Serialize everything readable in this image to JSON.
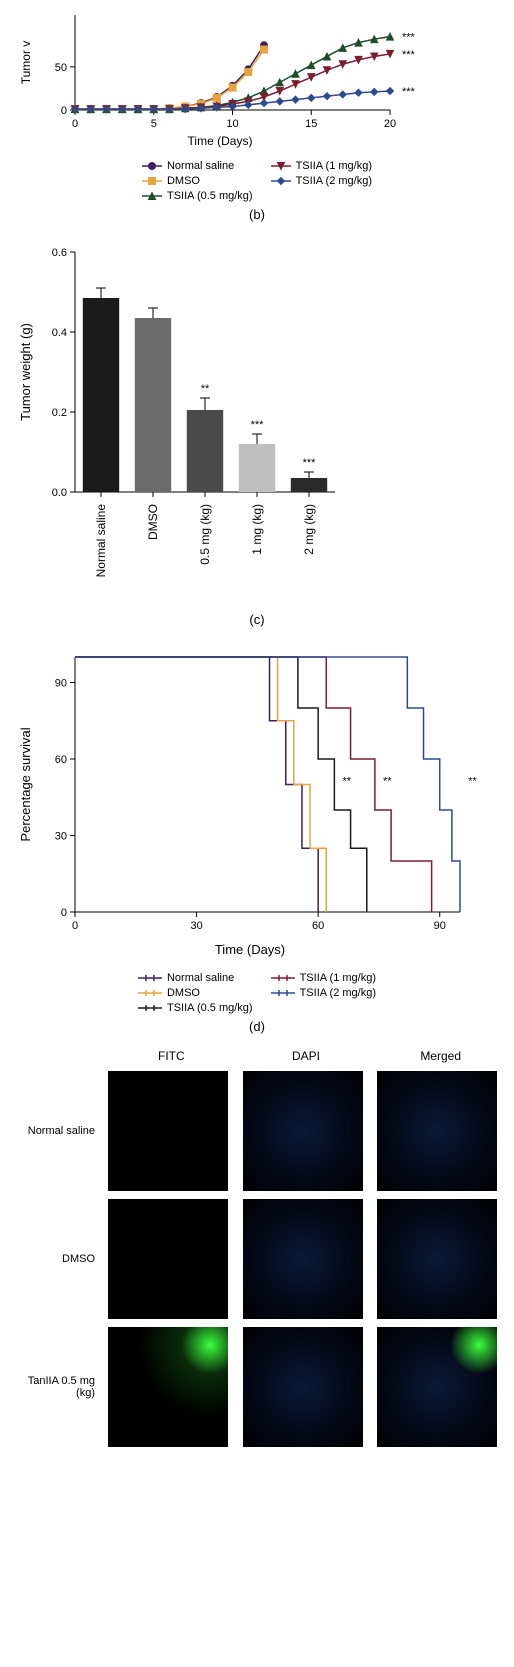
{
  "panel_b": {
    "label": "(b)",
    "ylabel": "Tumor v",
    "xlabel": "Time (Days)",
    "xlim": [
      0,
      20
    ],
    "ylim": [
      0,
      110
    ],
    "xticks": [
      0,
      5,
      10,
      15,
      20
    ],
    "yticks": [
      0,
      50
    ],
    "series": [
      {
        "name": "Normal saline",
        "color": "#3b1e5f",
        "marker": "circle",
        "x": [
          0,
          1,
          2,
          3,
          4,
          5,
          6,
          7,
          8,
          9,
          10,
          11,
          12
        ],
        "y": [
          1,
          1,
          1,
          1,
          1,
          1,
          2,
          4,
          8,
          15,
          28,
          47,
          75
        ]
      },
      {
        "name": "DMSO",
        "color": "#e8a33d",
        "marker": "square",
        "x": [
          0,
          1,
          2,
          3,
          4,
          5,
          6,
          7,
          8,
          9,
          10,
          11,
          12
        ],
        "y": [
          1,
          1,
          1,
          1,
          1,
          1,
          2,
          4,
          7,
          14,
          26,
          44,
          70
        ]
      },
      {
        "name": "TSIIA (0.5 mg/kg)",
        "color": "#1e4d2b",
        "marker": "triangle-up",
        "x": [
          0,
          1,
          2,
          3,
          4,
          5,
          6,
          7,
          8,
          9,
          10,
          11,
          12,
          13,
          14,
          15,
          16,
          17,
          18,
          19,
          20
        ],
        "y": [
          1,
          1,
          1,
          1,
          1,
          1,
          1,
          2,
          3,
          5,
          9,
          14,
          22,
          32,
          42,
          52,
          62,
          72,
          78,
          82,
          85
        ],
        "sig": "***"
      },
      {
        "name": "TSIIA (1 mg/kg)",
        "color": "#7a1e2e",
        "marker": "triangle-down",
        "x": [
          0,
          1,
          2,
          3,
          4,
          5,
          6,
          7,
          8,
          9,
          10,
          11,
          12,
          13,
          14,
          15,
          16,
          17,
          18,
          19,
          20
        ],
        "y": [
          1,
          1,
          1,
          1,
          1,
          1,
          1,
          2,
          3,
          4,
          7,
          10,
          15,
          22,
          30,
          38,
          46,
          53,
          58,
          62,
          65
        ],
        "sig": "***"
      },
      {
        "name": "TSIIA (2 mg/kg)",
        "color": "#2e4a8f",
        "marker": "diamond",
        "x": [
          0,
          1,
          2,
          3,
          4,
          5,
          6,
          7,
          8,
          9,
          10,
          11,
          12,
          13,
          14,
          15,
          16,
          17,
          18,
          19,
          20
        ],
        "y": [
          1,
          1,
          1,
          1,
          1,
          1,
          1,
          1,
          2,
          3,
          4,
          6,
          8,
          10,
          12,
          14,
          16,
          18,
          20,
          21,
          22
        ],
        "sig": "***"
      }
    ],
    "legend_layout": [
      [
        "Normal saline",
        "TSIIA (1 mg/kg)"
      ],
      [
        "DMSO",
        "TSIIA (2 mg/kg)"
      ],
      [
        "TSIIA (0.5 mg/kg)",
        ""
      ]
    ]
  },
  "panel_c": {
    "label": "(c)",
    "ylabel": "Tumor weight (g)",
    "ylim": [
      0,
      0.6
    ],
    "yticks": [
      0.0,
      0.2,
      0.4,
      0.6
    ],
    "categories": [
      "Normal saline",
      "DMSO",
      "0.5 mg (kg)",
      "1 mg (kg)",
      "2 mg (kg)"
    ],
    "values": [
      0.485,
      0.435,
      0.205,
      0.12,
      0.035
    ],
    "errors": [
      0.025,
      0.025,
      0.03,
      0.025,
      0.015
    ],
    "colors": [
      "#1a1a1a",
      "#6b6b6b",
      "#4a4a4a",
      "#bfbfbf",
      "#2a2a2a"
    ],
    "sig": [
      "",
      "",
      "**",
      "***",
      "***"
    ],
    "bar_width": 0.7
  },
  "panel_d": {
    "label": "(d)",
    "ylabel": "Percentage survival",
    "xlabel": "Time (Days)",
    "xlim": [
      0,
      95
    ],
    "ylim": [
      0,
      100
    ],
    "xticks": [
      0,
      30,
      60,
      90
    ],
    "yticks": [
      0,
      30,
      60,
      90
    ],
    "series": [
      {
        "name": "Normal saline",
        "color": "#3b1e5f",
        "steps": [
          [
            0,
            100
          ],
          [
            48,
            100
          ],
          [
            48,
            75
          ],
          [
            52,
            75
          ],
          [
            52,
            50
          ],
          [
            56,
            50
          ],
          [
            56,
            25
          ],
          [
            60,
            25
          ],
          [
            60,
            0
          ]
        ]
      },
      {
        "name": "DMSO",
        "color": "#e8a33d",
        "steps": [
          [
            0,
            100
          ],
          [
            50,
            100
          ],
          [
            50,
            75
          ],
          [
            54,
            75
          ],
          [
            54,
            50
          ],
          [
            58,
            50
          ],
          [
            58,
            25
          ],
          [
            62,
            25
          ],
          [
            62,
            0
          ]
        ]
      },
      {
        "name": "TSIIA (0.5 mg/kg)",
        "color": "#1a1a1a",
        "steps": [
          [
            0,
            100
          ],
          [
            55,
            100
          ],
          [
            55,
            80
          ],
          [
            60,
            80
          ],
          [
            60,
            60
          ],
          [
            64,
            60
          ],
          [
            64,
            40
          ],
          [
            68,
            40
          ],
          [
            68,
            25
          ],
          [
            72,
            25
          ],
          [
            72,
            0
          ]
        ],
        "sig": "**",
        "sig_x": 66
      },
      {
        "name": "TSIIA (1 mg/kg)",
        "color": "#7a1e2e",
        "steps": [
          [
            0,
            100
          ],
          [
            62,
            100
          ],
          [
            62,
            80
          ],
          [
            68,
            80
          ],
          [
            68,
            60
          ],
          [
            74,
            60
          ],
          [
            74,
            40
          ],
          [
            78,
            40
          ],
          [
            78,
            20
          ],
          [
            88,
            20
          ],
          [
            88,
            0
          ]
        ],
        "sig": "**",
        "sig_x": 76
      },
      {
        "name": "TSIIA (2 mg/kg)",
        "color": "#2e4a8f",
        "steps": [
          [
            0,
            100
          ],
          [
            82,
            100
          ],
          [
            82,
            80
          ],
          [
            86,
            80
          ],
          [
            86,
            60
          ],
          [
            90,
            60
          ],
          [
            90,
            40
          ],
          [
            93,
            40
          ],
          [
            93,
            20
          ],
          [
            95,
            20
          ],
          [
            95,
            0
          ]
        ],
        "sig": "**",
        "sig_x": 97
      }
    ],
    "legend_layout": [
      [
        "Normal saline",
        "TSIIA (1 mg/kg)"
      ],
      [
        "DMSO",
        "TSIIA (2 mg/kg)"
      ],
      [
        "TSIIA (0.5 mg/kg)",
        ""
      ]
    ]
  },
  "imaging": {
    "columns": [
      "FITC",
      "DAPI",
      "Merged"
    ],
    "rows": [
      "Normal saline",
      "DMSO",
      "TanIIA 0.5 mg (kg)"
    ],
    "cell_classes": [
      [
        "",
        "imaging-blue",
        "imaging-blue"
      ],
      [
        "",
        "imaging-blue",
        "imaging-blue"
      ],
      [
        "imaging-green",
        "imaging-blue",
        "imaging-merged"
      ]
    ]
  }
}
